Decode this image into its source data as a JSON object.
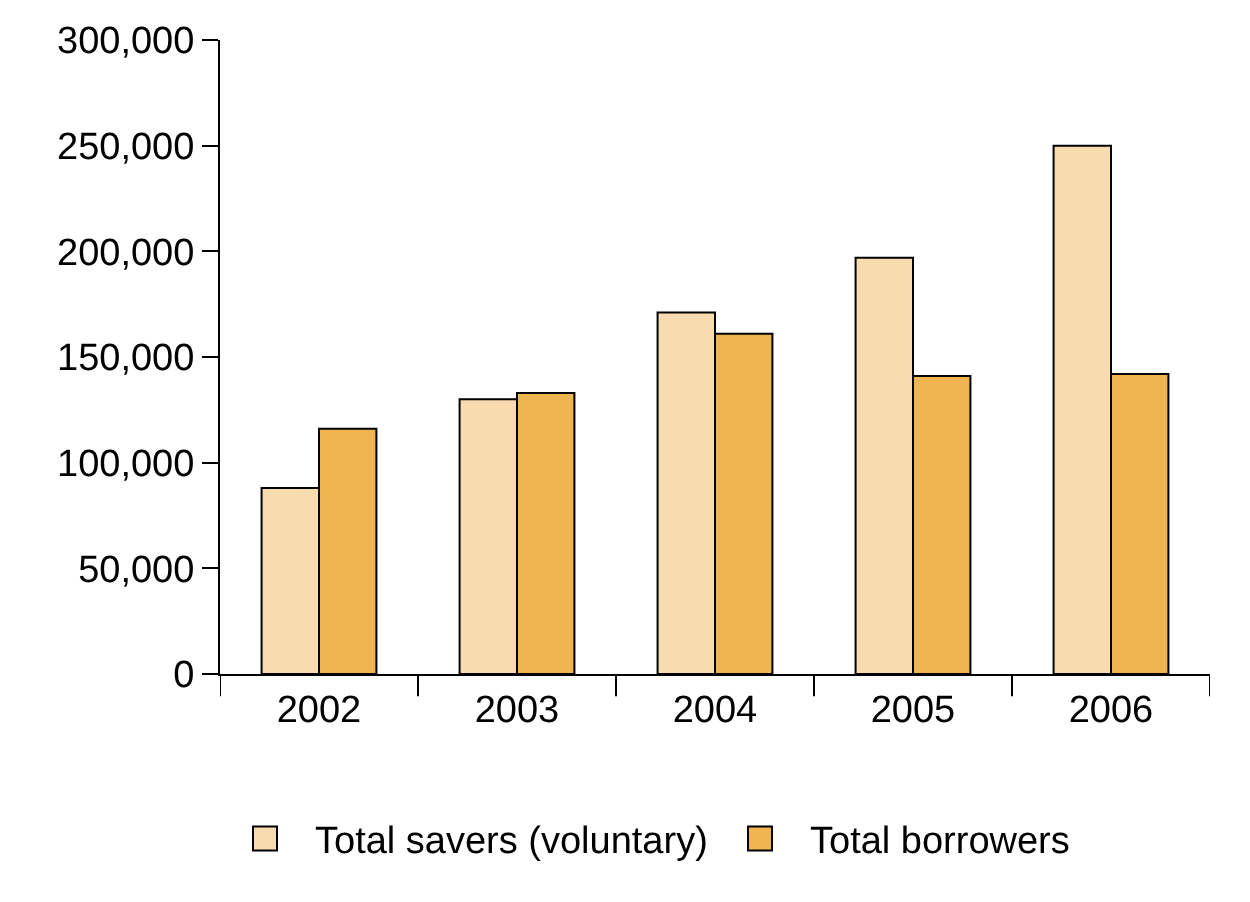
{
  "chart_data": {
    "type": "bar",
    "categories": [
      "2002",
      "2003",
      "2004",
      "2005",
      "2006"
    ],
    "series": [
      {
        "name": "Total savers (voluntary)",
        "color": "#f8dcaf",
        "values": [
          88000,
          130000,
          171000,
          197000,
          250000
        ]
      },
      {
        "name": "Total borrowers",
        "color": "#efb550",
        "values": [
          116000,
          133000,
          161000,
          141000,
          142000
        ]
      }
    ],
    "ylim": [
      0,
      300000
    ],
    "yticks": [
      {
        "value": 0,
        "label": "0"
      },
      {
        "value": 50000,
        "label": "50,000"
      },
      {
        "value": 100000,
        "label": "100,000"
      },
      {
        "value": 150000,
        "label": "150,000"
      },
      {
        "value": 200000,
        "label": "200,000"
      },
      {
        "value": 250000,
        "label": "250,000"
      },
      {
        "value": 300000,
        "label": "300,000"
      }
    ],
    "legend": "bottom"
  }
}
